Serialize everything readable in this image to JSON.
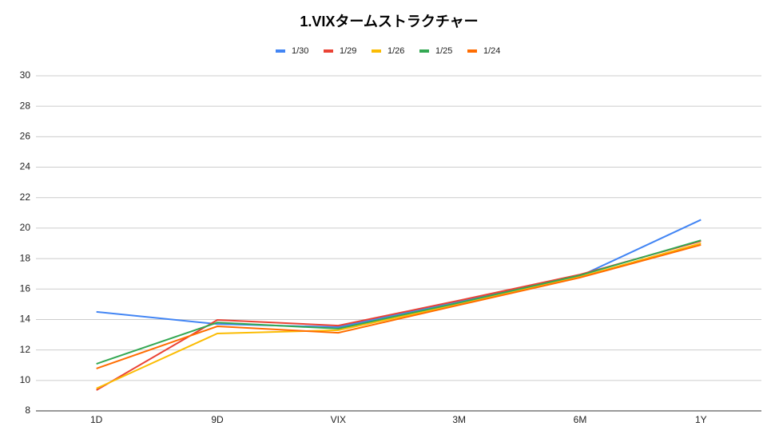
{
  "chart_data": {
    "type": "line",
    "title": "1.VIXタームストラクチャー",
    "categories": [
      "1D",
      "9D",
      "VIX",
      "3M",
      "6M",
      "1Y"
    ],
    "series": [
      {
        "name": "1/30",
        "color": "#4285f4",
        "values": [
          14.5,
          13.7,
          13.5,
          15.2,
          16.85,
          20.55
        ]
      },
      {
        "name": "1/29",
        "color": "#ea4335",
        "values": [
          9.36,
          13.97,
          13.6,
          15.25,
          16.95,
          19.15
        ]
      },
      {
        "name": "1/26",
        "color": "#fbbc04",
        "values": [
          9.47,
          13.08,
          13.3,
          15.0,
          16.8,
          19.0
        ]
      },
      {
        "name": "1/25",
        "color": "#34a853",
        "values": [
          11.09,
          13.8,
          13.4,
          15.1,
          16.9,
          19.2
        ]
      },
      {
        "name": "1/24",
        "color": "#ff6d01",
        "values": [
          10.78,
          13.55,
          13.13,
          14.95,
          16.75,
          18.9
        ]
      }
    ],
    "ylim": [
      8,
      30
    ],
    "yticks": [
      8,
      10,
      12,
      14,
      16,
      18,
      20,
      22,
      24,
      26,
      28,
      30
    ],
    "grid": true,
    "legend": "top"
  }
}
